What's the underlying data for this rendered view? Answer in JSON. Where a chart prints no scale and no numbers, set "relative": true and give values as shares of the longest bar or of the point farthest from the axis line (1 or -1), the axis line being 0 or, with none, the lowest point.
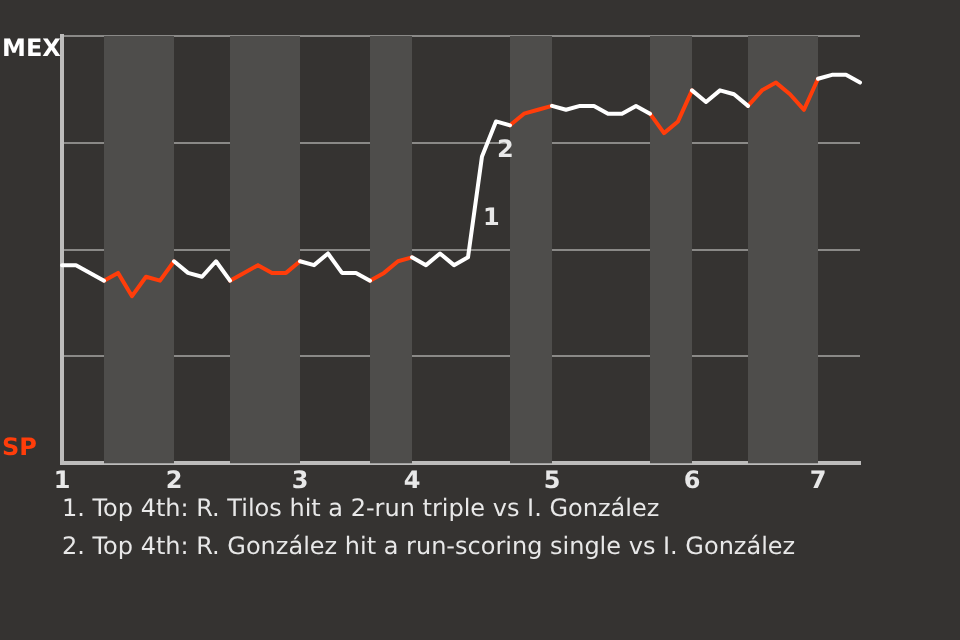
{
  "chart_data": {
    "type": "line",
    "relative": true,
    "categories": [
      "1",
      null,
      null,
      null,
      null,
      null,
      null,
      null,
      "2",
      null,
      null,
      null,
      null,
      null,
      null,
      null,
      null,
      "3",
      null,
      null,
      null,
      null,
      null,
      null,
      null,
      "4",
      null,
      null,
      null,
      null,
      null,
      null,
      null,
      null,
      null,
      "5",
      null,
      null,
      null,
      null,
      null,
      null,
      null,
      null,
      null,
      "6",
      null,
      null,
      null,
      null,
      null,
      null,
      null,
      null,
      "7",
      null,
      null,
      null
    ],
    "grid": "y",
    "legend": "left",
    "marker": "none",
    "line_style": "solid",
    "series": [
      {
        "name": "MEX",
        "color": "#ffffff",
        "values": [
          0.51,
          0.51,
          0.49,
          0.47,
          null,
          null,
          null,
          null,
          0.52,
          0.49,
          0.48,
          0.52,
          0.47,
          null,
          null,
          null,
          null,
          0.52,
          0.51,
          0.54,
          0.49,
          0.49,
          0.47,
          null,
          null,
          0.53,
          0.51,
          0.54,
          0.51,
          0.53,
          0.79,
          0.88,
          0.87,
          null,
          null,
          0.92,
          0.91,
          0.92,
          0.92,
          0.9,
          0.9,
          0.92,
          0.9,
          null,
          null,
          0.96,
          0.93,
          0.96,
          0.95,
          0.92,
          null,
          null,
          null,
          null,
          0.99,
          1,
          1,
          0.98
        ]
      },
      {
        "name": "SP",
        "color": "#ff3d0a",
        "values": [
          null,
          null,
          null,
          0.47,
          0.49,
          0.43,
          0.48,
          0.47,
          0.52,
          null,
          null,
          null,
          0.47,
          0.49,
          0.51,
          0.49,
          0.49,
          0.52,
          null,
          null,
          null,
          null,
          0.47,
          0.49,
          0.52,
          0.53,
          null,
          null,
          null,
          null,
          null,
          null,
          0.87,
          0.9,
          0.91,
          0.92,
          null,
          null,
          null,
          null,
          null,
          null,
          0.9,
          0.85,
          0.88,
          0.96,
          null,
          null,
          null,
          0.92,
          0.96,
          0.98,
          0.95,
          0.91,
          0.99,
          null,
          null,
          null
        ]
      }
    ],
    "annotations": [
      "1",
      "2",
      "1. Top 4th: R. Tilos hit a 2-run triple vs I. González",
      "2. Top 4th: R. González hit a run-scoring single vs I. González"
    ]
  }
}
